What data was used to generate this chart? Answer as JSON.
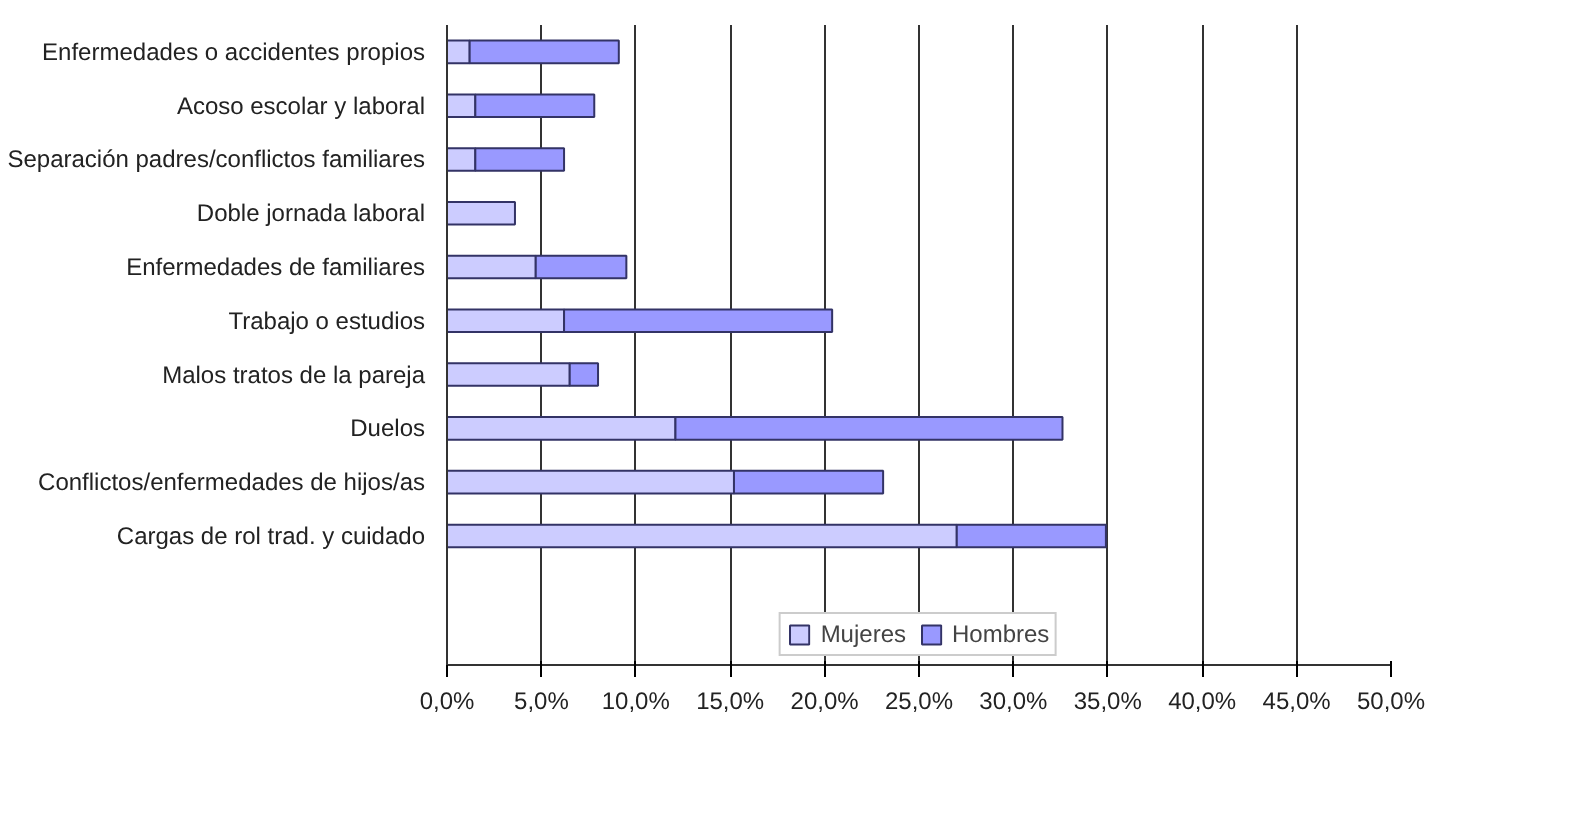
{
  "chart_data": {
    "type": "bar",
    "orientation": "horizontal",
    "stacked": true,
    "categories": [
      "Enfermedades o accidentes propios",
      "Acoso escolar y laboral",
      "Separación padres/conflictos familiares",
      "Doble jornada laboral",
      "Enfermedades de familiares",
      "Trabajo o estudios",
      "Malos tratos de la pareja",
      "Duelos",
      "Conflictos/enfermedades de hijos/as",
      "Cargas de rol trad. y cuidado"
    ],
    "series": [
      {
        "name": "Mujeres",
        "color": "#ccccff",
        "values": [
          1.2,
          1.5,
          1.5,
          3.6,
          4.7,
          6.2,
          6.5,
          12.1,
          15.2,
          27.0
        ]
      },
      {
        "name": "Hombres",
        "color": "#9999ff",
        "values": [
          7.9,
          6.3,
          4.7,
          0,
          4.8,
          14.2,
          1.5,
          20.5,
          7.9,
          7.9
        ]
      }
    ],
    "xlim": [
      0,
      50
    ],
    "xticks": [
      {
        "value": 0,
        "label": "0,0%"
      },
      {
        "value": 5,
        "label": "5,0%"
      },
      {
        "value": 10,
        "label": "10,0%"
      },
      {
        "value": 15,
        "label": "15,0%"
      },
      {
        "value": 20,
        "label": "20,0%"
      },
      {
        "value": 25,
        "label": "25,0%"
      },
      {
        "value": 30,
        "label": "30,0%"
      },
      {
        "value": 35,
        "label": "35,0%"
      },
      {
        "value": 40,
        "label": "40,0%"
      },
      {
        "value": 45,
        "label": "45,0%"
      },
      {
        "value": 50,
        "label": "50,0%"
      }
    ],
    "grid": "x",
    "legend": "bottom"
  }
}
